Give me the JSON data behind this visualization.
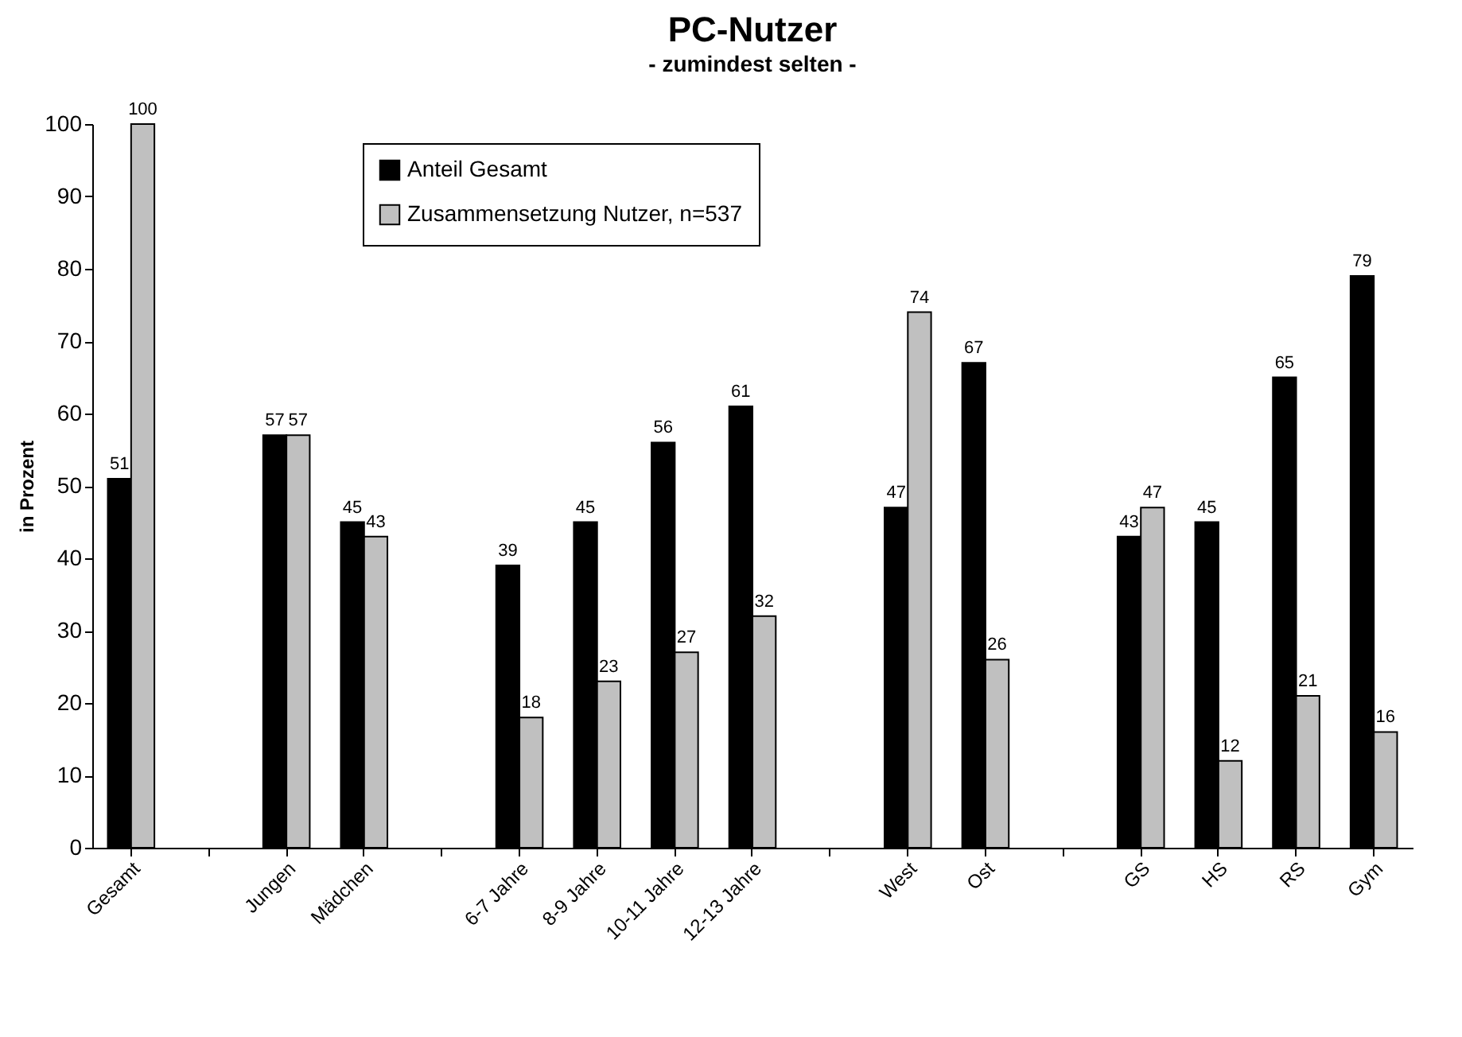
{
  "chart_data": {
    "type": "bar",
    "title": "PC-Nutzer",
    "subtitle": "- zumindest selten -",
    "ylabel": "in Prozent",
    "categories": [
      "Gesamt",
      null,
      "Jungen",
      "Mädchen",
      null,
      "6-7 Jahre",
      "8-9 Jahre",
      "10-11 Jahre",
      "12-13 Jahre",
      null,
      "West",
      "Ost",
      null,
      "GS",
      "HS",
      "RS",
      "Gym"
    ],
    "series": [
      {
        "name": "Anteil Gesamt",
        "color": "#000000",
        "values": [
          51,
          null,
          57,
          45,
          null,
          39,
          45,
          56,
          61,
          null,
          47,
          67,
          null,
          43,
          45,
          65,
          79
        ]
      },
      {
        "name": "Zusammensetzung Nutzer, n=537",
        "color": "#c0c0c0",
        "values": [
          100,
          null,
          57,
          43,
          null,
          18,
          23,
          27,
          32,
          null,
          74,
          26,
          null,
          47,
          12,
          21,
          16
        ]
      }
    ],
    "ylim": [
      0,
      100
    ],
    "yticks": [
      0,
      10,
      20,
      30,
      40,
      50,
      60,
      70,
      80,
      90,
      100
    ],
    "grid": false,
    "legend": "top",
    "data_labels": true
  }
}
